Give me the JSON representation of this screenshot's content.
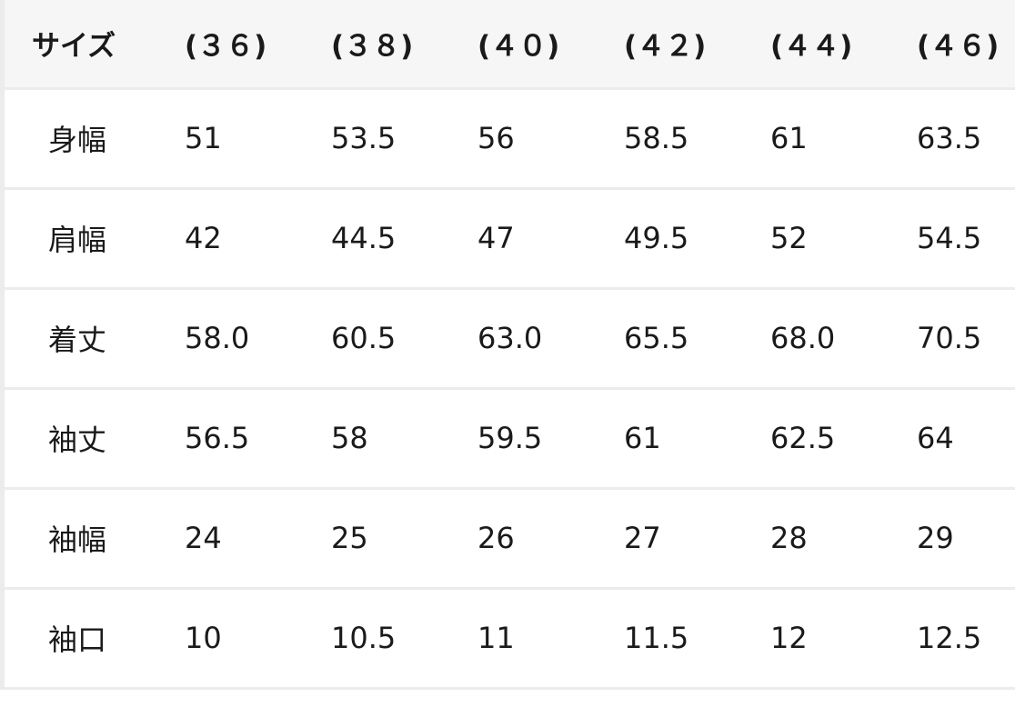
{
  "table": {
    "headers": [
      "サイズ",
      "(３６)",
      "(３８)",
      "(４０)",
      "(４２)",
      "(４４)",
      "(４６)"
    ],
    "rows": [
      {
        "label": "身幅",
        "values": [
          "51",
          "53.5",
          "56",
          "58.5",
          "61",
          "63.5"
        ]
      },
      {
        "label": "肩幅",
        "values": [
          "42",
          "44.5",
          "47",
          "49.5",
          "52",
          "54.5"
        ]
      },
      {
        "label": "着丈",
        "values": [
          "58.0",
          "60.5",
          "63.0",
          "65.5",
          "68.0",
          "70.5"
        ]
      },
      {
        "label": "袖丈",
        "values": [
          "56.5",
          "58",
          "59.5",
          "61",
          "62.5",
          "64"
        ]
      },
      {
        "label": "袖幅",
        "values": [
          "24",
          "25",
          "26",
          "27",
          "28",
          "29"
        ]
      },
      {
        "label": "袖口",
        "values": [
          "10",
          "10.5",
          "11",
          "11.5",
          "12",
          "12.5"
        ]
      }
    ]
  }
}
